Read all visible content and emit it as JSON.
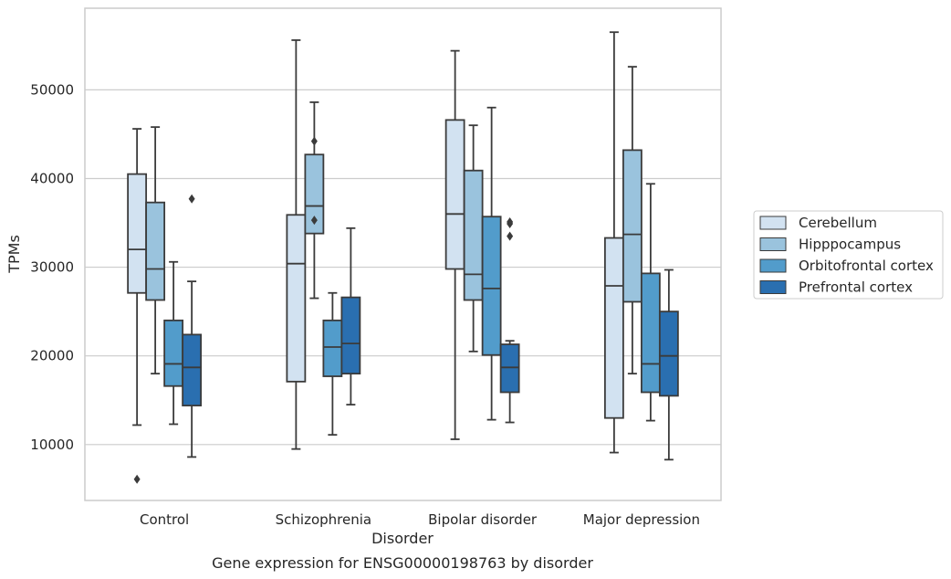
{
  "caption": "Gene expression for ENSG00000198763 by disorder",
  "chart_data": {
    "type": "box",
    "xlabel": "Disorder",
    "ylabel": "TPMs",
    "categories": [
      "Control",
      "Schizophrenia",
      "Bipolar disorder",
      "Major depression"
    ],
    "yticks": [
      "10000",
      "20000",
      "30000",
      "40000",
      "50000"
    ],
    "ylim": [
      3700,
      59200
    ],
    "grid": "horizontal",
    "legend_position": "right",
    "series": [
      {
        "name": "Cerebellum",
        "color": "#d2e2f1",
        "boxes": [
          {
            "whisker_low": 12200,
            "q1": 27100,
            "median": 32000,
            "q3": 40500,
            "whisker_high": 45600,
            "outliers": [
              6100
            ]
          },
          {
            "whisker_low": 9500,
            "q1": 17100,
            "median": 30400,
            "q3": 35900,
            "whisker_high": 55600,
            "outliers": []
          },
          {
            "whisker_low": 10600,
            "q1": 29800,
            "median": 36000,
            "q3": 46600,
            "whisker_high": 54400,
            "outliers": []
          },
          {
            "whisker_low": 9100,
            "q1": 13000,
            "median": 27900,
            "q3": 33300,
            "whisker_high": 56500,
            "outliers": []
          }
        ]
      },
      {
        "name": "Hipppocampus",
        "color": "#9ac3dd",
        "boxes": [
          {
            "whisker_low": 18000,
            "q1": 26300,
            "median": 29800,
            "q3": 37300,
            "whisker_high": 45800,
            "outliers": []
          },
          {
            "whisker_low": 26500,
            "q1": 33800,
            "median": 36900,
            "q3": 42700,
            "whisker_high": 48600,
            "outliers": [
              44200,
              35300
            ]
          },
          {
            "whisker_low": 20500,
            "q1": 26300,
            "median": 29200,
            "q3": 40900,
            "whisker_high": 46000,
            "outliers": []
          },
          {
            "whisker_low": 18000,
            "q1": 26100,
            "median": 33700,
            "q3": 43200,
            "whisker_high": 52600,
            "outliers": []
          }
        ]
      },
      {
        "name": "Orbitofrontal cortex",
        "color": "#529ccb",
        "boxes": [
          {
            "whisker_low": 12300,
            "q1": 16600,
            "median": 19100,
            "q3": 24000,
            "whisker_high": 30600,
            "outliers": []
          },
          {
            "whisker_low": 11100,
            "q1": 17700,
            "median": 21000,
            "q3": 24000,
            "whisker_high": 27100,
            "outliers": []
          },
          {
            "whisker_low": 12800,
            "q1": 20100,
            "median": 27600,
            "q3": 35700,
            "whisker_high": 48000,
            "outliers": []
          },
          {
            "whisker_low": 12700,
            "q1": 15900,
            "median": 19100,
            "q3": 29300,
            "whisker_high": 39400,
            "outliers": []
          }
        ]
      },
      {
        "name": "Prefrontal cortex",
        "color": "#2a6fb0",
        "boxes": [
          {
            "whisker_low": 8600,
            "q1": 14400,
            "median": 18700,
            "q3": 22400,
            "whisker_high": 28400,
            "outliers": [
              37700
            ]
          },
          {
            "whisker_low": 14500,
            "q1": 18000,
            "median": 21400,
            "q3": 26600,
            "whisker_high": 34400,
            "outliers": []
          },
          {
            "whisker_low": 12500,
            "q1": 15900,
            "median": 18700,
            "q3": 21300,
            "whisker_high": 21700,
            "outliers": [
              35100,
              34900,
              33500
            ]
          },
          {
            "whisker_low": 8300,
            "q1": 15500,
            "median": 20000,
            "q3": 25000,
            "whisker_high": 29700,
            "outliers": []
          }
        ]
      }
    ]
  }
}
